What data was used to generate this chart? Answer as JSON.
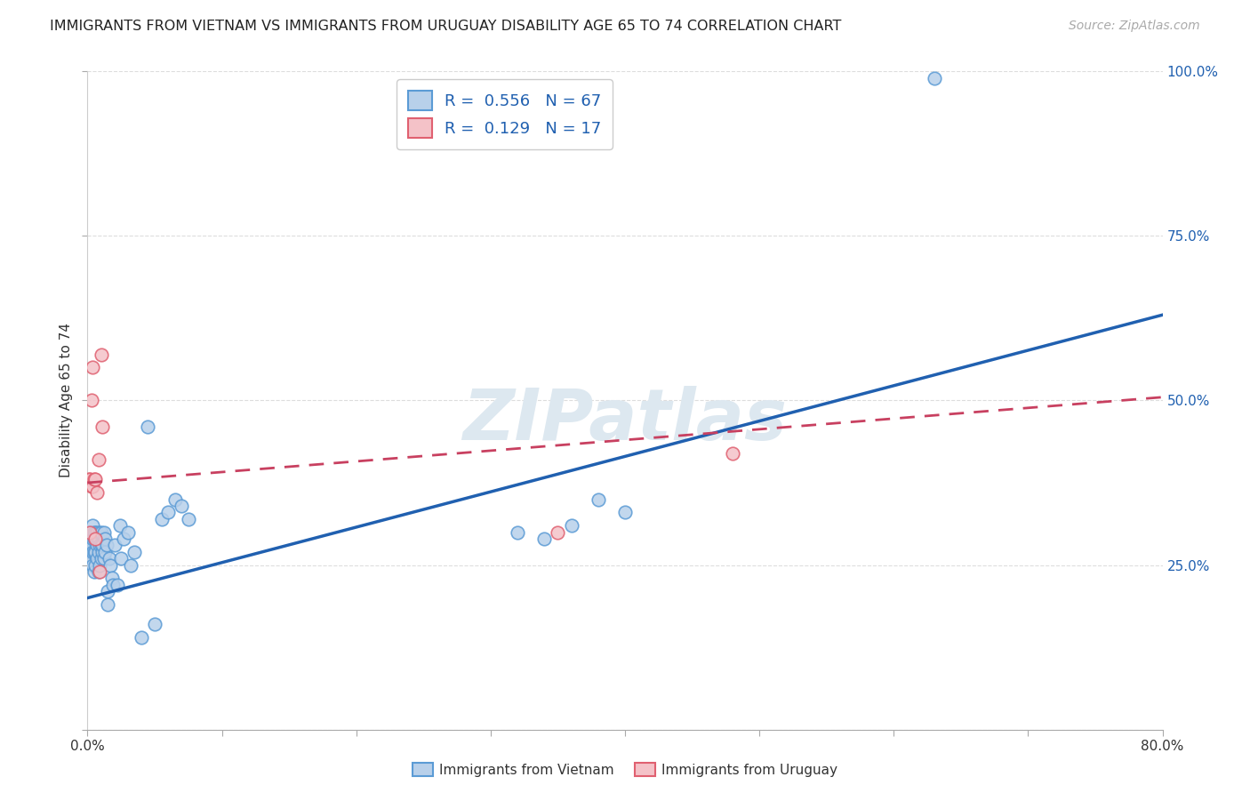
{
  "title": "IMMIGRANTS FROM VIETNAM VS IMMIGRANTS FROM URUGUAY DISABILITY AGE 65 TO 74 CORRELATION CHART",
  "source": "Source: ZipAtlas.com",
  "ylabel": "Disability Age 65 to 74",
  "xlim": [
    0,
    0.8
  ],
  "ylim": [
    0,
    1.0
  ],
  "xticks": [
    0.0,
    0.1,
    0.2,
    0.3,
    0.4,
    0.5,
    0.6,
    0.7,
    0.8
  ],
  "xticklabels": [
    "0.0%",
    "",
    "",
    "",
    "",
    "",
    "",
    "",
    "80.0%"
  ],
  "yticks": [
    0.0,
    0.25,
    0.5,
    0.75,
    1.0
  ],
  "yticklabels_right": [
    "",
    "25.0%",
    "50.0%",
    "75.0%",
    "100.0%"
  ],
  "vietnam_R": "0.556",
  "vietnam_N": "67",
  "uruguay_R": "0.129",
  "uruguay_N": "17",
  "vietnam_fill_color": "#b8d0ea",
  "vietnam_edge_color": "#5b9bd5",
  "uruguay_fill_color": "#f4c2c8",
  "uruguay_edge_color": "#e06070",
  "vietnam_line_color": "#2060b0",
  "uruguay_line_color": "#c84060",
  "watermark": "ZIPatlas",
  "vietnam_x": [
    0.001,
    0.001,
    0.002,
    0.002,
    0.003,
    0.003,
    0.003,
    0.004,
    0.004,
    0.004,
    0.004,
    0.005,
    0.005,
    0.005,
    0.005,
    0.006,
    0.006,
    0.006,
    0.006,
    0.007,
    0.007,
    0.007,
    0.007,
    0.008,
    0.008,
    0.008,
    0.009,
    0.009,
    0.009,
    0.01,
    0.01,
    0.01,
    0.011,
    0.011,
    0.012,
    0.012,
    0.013,
    0.013,
    0.014,
    0.015,
    0.015,
    0.016,
    0.017,
    0.018,
    0.019,
    0.02,
    0.022,
    0.024,
    0.025,
    0.027,
    0.03,
    0.032,
    0.035,
    0.04,
    0.045,
    0.05,
    0.055,
    0.06,
    0.065,
    0.07,
    0.075,
    0.32,
    0.34,
    0.36,
    0.38,
    0.4,
    0.63
  ],
  "vietnam_y": [
    0.28,
    0.3,
    0.27,
    0.29,
    0.26,
    0.28,
    0.3,
    0.25,
    0.27,
    0.29,
    0.31,
    0.24,
    0.27,
    0.29,
    0.3,
    0.25,
    0.27,
    0.29,
    0.3,
    0.26,
    0.28,
    0.29,
    0.3,
    0.24,
    0.27,
    0.29,
    0.25,
    0.28,
    0.3,
    0.26,
    0.28,
    0.3,
    0.27,
    0.28,
    0.26,
    0.3,
    0.27,
    0.29,
    0.28,
    0.19,
    0.21,
    0.26,
    0.25,
    0.23,
    0.22,
    0.28,
    0.22,
    0.31,
    0.26,
    0.29,
    0.3,
    0.25,
    0.27,
    0.14,
    0.46,
    0.16,
    0.32,
    0.33,
    0.35,
    0.34,
    0.32,
    0.3,
    0.29,
    0.31,
    0.35,
    0.33,
    0.99
  ],
  "uruguay_x": [
    0.001,
    0.002,
    0.002,
    0.003,
    0.003,
    0.004,
    0.004,
    0.005,
    0.006,
    0.006,
    0.007,
    0.008,
    0.009,
    0.01,
    0.011,
    0.35,
    0.48
  ],
  "uruguay_y": [
    0.38,
    0.3,
    0.38,
    0.37,
    0.5,
    0.37,
    0.55,
    0.38,
    0.29,
    0.38,
    0.36,
    0.41,
    0.24,
    0.57,
    0.46,
    0.3,
    0.42
  ],
  "vietnam_line_x0": 0.0,
  "vietnam_line_x1": 0.8,
  "vietnam_line_y0": 0.2,
  "vietnam_line_y1": 0.63,
  "uruguay_line_x0": 0.0,
  "uruguay_line_x1": 0.8,
  "uruguay_line_y0": 0.375,
  "uruguay_line_y1": 0.505,
  "background_color": "#ffffff",
  "grid_color": "#dddddd",
  "title_fontsize": 11.5,
  "axis_label_fontsize": 11,
  "tick_fontsize": 11,
  "legend_fontsize": 13,
  "source_fontsize": 10,
  "legend_label_vietnam": "Immigrants from Vietnam",
  "legend_label_uruguay": "Immigrants from Uruguay"
}
